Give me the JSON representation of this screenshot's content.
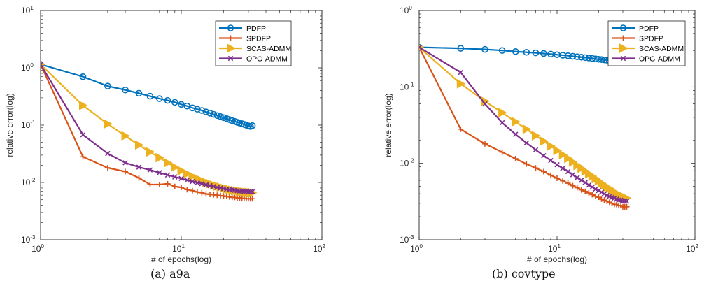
{
  "chart_data": [
    {
      "type": "line",
      "caption": "(a) a9a",
      "xlabel": "# of epochs(log)",
      "ylabel": "relative error(log)",
      "xscale": "log",
      "yscale": "log",
      "xlim": [
        1,
        100
      ],
      "ylim": [
        0.001,
        10
      ],
      "xtick_base": "10",
      "xtick_exponents": [
        "0",
        "1",
        "2"
      ],
      "ytick_base": "10",
      "ytick_exponents": [
        "-3",
        "-2",
        "-1",
        "0",
        "1"
      ],
      "legend_position": "top-right",
      "x": [
        1,
        2,
        3,
        4,
        5,
        6,
        7,
        8,
        9,
        10,
        11,
        12,
        13,
        14,
        15,
        16,
        17,
        18,
        19,
        20,
        21,
        22,
        23,
        24,
        25,
        26,
        27,
        28,
        29,
        30,
        31,
        32
      ],
      "series": [
        {
          "name": "PDFP",
          "color": "#0072BD",
          "marker": "circle",
          "values": [
            1.15,
            0.7,
            0.48,
            0.41,
            0.36,
            0.32,
            0.29,
            0.27,
            0.25,
            0.23,
            0.215,
            0.2,
            0.19,
            0.18,
            0.17,
            0.162,
            0.154,
            0.147,
            0.141,
            0.135,
            0.13,
            0.125,
            0.12,
            0.116,
            0.112,
            0.109,
            0.106,
            0.103,
            0.1,
            0.097,
            0.095,
            0.098
          ]
        },
        {
          "name": "SPDFP",
          "color": "#D95319",
          "marker": "plus",
          "values": [
            1.15,
            0.028,
            0.018,
            0.0155,
            0.012,
            0.0092,
            0.0092,
            0.0095,
            0.0085,
            0.0082,
            0.0075,
            0.0072,
            0.0068,
            0.0066,
            0.0063,
            0.0062,
            0.0061,
            0.006,
            0.0059,
            0.0058,
            0.0057,
            0.0056,
            0.0055,
            0.0055,
            0.0054,
            0.0054,
            0.0053,
            0.0053,
            0.0052,
            0.0052,
            0.0052,
            0.0052
          ]
        },
        {
          "name": "SCAS-ADMM",
          "color": "#EDB120",
          "marker": "triangle-right",
          "values": [
            1.15,
            0.22,
            0.105,
            0.065,
            0.045,
            0.034,
            0.027,
            0.022,
            0.0185,
            0.016,
            0.0142,
            0.0128,
            0.0117,
            0.0108,
            0.0101,
            0.0095,
            0.009,
            0.0086,
            0.0083,
            0.008,
            0.0077,
            0.0075,
            0.0073,
            0.0072,
            0.0071,
            0.007,
            0.0069,
            0.0068,
            0.0067,
            0.0067,
            0.0066,
            0.0066
          ]
        },
        {
          "name": "OPG-ADMM",
          "color": "#7E2F8E",
          "marker": "x",
          "values": [
            1.15,
            0.068,
            0.032,
            0.022,
            0.0185,
            0.0165,
            0.0148,
            0.0135,
            0.0125,
            0.0117,
            0.011,
            0.0104,
            0.0099,
            0.0095,
            0.0091,
            0.0088,
            0.0085,
            0.0082,
            0.008,
            0.0078,
            0.0076,
            0.0075,
            0.0074,
            0.0073,
            0.0072,
            0.0071,
            0.0071,
            0.007,
            0.007,
            0.0069,
            0.0069,
            0.0069
          ]
        }
      ]
    },
    {
      "type": "line",
      "caption": "(b) covtype",
      "xlabel": "# of epochs(log)",
      "ylabel": "relative error(log)",
      "xscale": "log",
      "yscale": "log",
      "xlim": [
        1,
        100
      ],
      "ylim": [
        0.001,
        1
      ],
      "xtick_base": "10",
      "xtick_exponents": [
        "0",
        "1",
        "2"
      ],
      "ytick_base": "10",
      "ytick_exponents": [
        "-3",
        "-2",
        "-1",
        "0"
      ],
      "legend_position": "top-right",
      "x": [
        1,
        2,
        3,
        4,
        5,
        6,
        7,
        8,
        9,
        10,
        11,
        12,
        13,
        14,
        15,
        16,
        17,
        18,
        19,
        20,
        21,
        22,
        23,
        24,
        25,
        26,
        27,
        28,
        29,
        30,
        31,
        32
      ],
      "series": [
        {
          "name": "PDFP",
          "color": "#0072BD",
          "marker": "circle",
          "values": [
            0.33,
            0.32,
            0.31,
            0.3,
            0.29,
            0.284,
            0.279,
            0.274,
            0.269,
            0.264,
            0.26,
            0.256,
            0.252,
            0.248,
            0.245,
            0.242,
            0.239,
            0.236,
            0.233,
            0.23,
            0.228,
            0.226,
            0.224,
            0.222,
            0.22,
            0.218,
            0.216,
            0.214,
            0.212,
            0.21,
            0.209,
            0.208
          ]
        },
        {
          "name": "SPDFP",
          "color": "#D95319",
          "marker": "plus",
          "values": [
            0.33,
            0.028,
            0.018,
            0.014,
            0.0115,
            0.0098,
            0.0087,
            0.0078,
            0.007,
            0.0064,
            0.0059,
            0.0055,
            0.0051,
            0.0048,
            0.0045,
            0.0043,
            0.0041,
            0.0039,
            0.0037,
            0.0036,
            0.0034,
            0.0033,
            0.0032,
            0.0031,
            0.003,
            0.0029,
            0.0029,
            0.0028,
            0.0028,
            0.0027,
            0.0027,
            0.0027
          ]
        },
        {
          "name": "SCAS-ADMM",
          "color": "#EDB120",
          "marker": "triangle-right",
          "values": [
            0.33,
            0.11,
            0.065,
            0.046,
            0.035,
            0.028,
            0.023,
            0.0195,
            0.0168,
            0.0147,
            0.013,
            0.0116,
            0.0104,
            0.0094,
            0.0086,
            0.0079,
            0.0073,
            0.0068,
            0.0063,
            0.0059,
            0.0055,
            0.0052,
            0.0049,
            0.0047,
            0.0044,
            0.0042,
            0.004,
            0.0039,
            0.0038,
            0.0037,
            0.0036,
            0.0035
          ]
        },
        {
          "name": "OPG-ADMM",
          "color": "#7E2F8E",
          "marker": "x",
          "values": [
            0.33,
            0.155,
            0.06,
            0.034,
            0.024,
            0.0185,
            0.015,
            0.0126,
            0.0109,
            0.0096,
            0.0086,
            0.0078,
            0.0071,
            0.0065,
            0.006,
            0.0056,
            0.0052,
            0.0049,
            0.0046,
            0.0044,
            0.0042,
            0.004,
            0.0038,
            0.0037,
            0.0036,
            0.0035,
            0.0034,
            0.0033,
            0.0033,
            0.0032,
            0.0032,
            0.0032
          ]
        }
      ]
    }
  ]
}
